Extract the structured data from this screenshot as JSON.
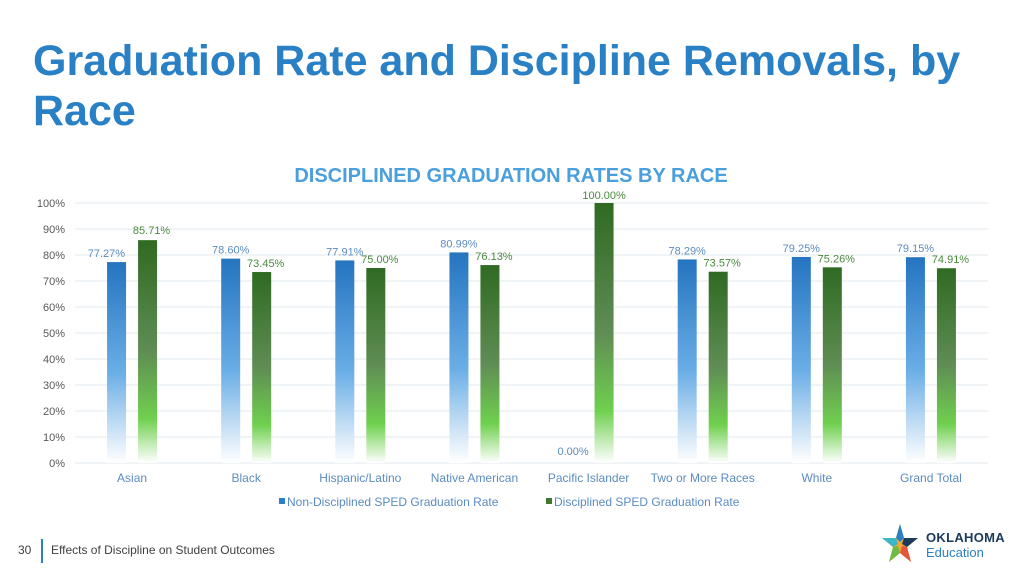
{
  "slide": {
    "title": "Graduation Rate and Discipline Removals, by Race",
    "page_number": "30",
    "footer_text": "Effects of Discipline on Student Outcomes",
    "logo": {
      "word1": "OKLAHOMA",
      "word2": "Education"
    }
  },
  "colors": {
    "title": "#2a80c4",
    "chart_title": "#4a9fdc",
    "non_disciplined": "#2d7fc6",
    "disciplined": "#3d7a2f",
    "label_blue": "#5b8cc0",
    "label_green": "#4a8a3c",
    "axis_text": "#595959",
    "category_text": "#5b8cc0",
    "grid": "#e2e8ee"
  },
  "chart_data": {
    "type": "bar",
    "title": "DISCIPLINED GRADUATION RATES BY RACE",
    "categories": [
      "Asian",
      "Black",
      "Hispanic/Latino",
      "Native American",
      "Pacific Islander",
      "Two or More Races",
      "White",
      "Grand Total"
    ],
    "series": [
      {
        "name": "Non-Disciplined SPED Graduation Rate",
        "values": [
          77.27,
          78.6,
          77.91,
          80.99,
          0.0,
          78.29,
          79.25,
          79.15
        ],
        "labels": [
          "77.27%",
          "78.60%",
          "77.91%",
          "80.99%",
          "0.00%",
          "78.29%",
          "79.25%",
          "79.15%"
        ]
      },
      {
        "name": "Disciplined SPED Graduation Rate",
        "values": [
          85.71,
          73.45,
          75.0,
          76.13,
          100.0,
          73.57,
          75.26,
          74.91
        ],
        "labels": [
          "85.71%",
          "73.45%",
          "75.00%",
          "76.13%",
          "100.00%",
          "73.57%",
          "75.26%",
          "74.91%"
        ]
      }
    ],
    "ylim": [
      0,
      100
    ],
    "yticks": [
      "0%",
      "10%",
      "20%",
      "30%",
      "40%",
      "50%",
      "60%",
      "70%",
      "80%",
      "90%",
      "100%"
    ],
    "grid": true,
    "legend": "bottom"
  }
}
